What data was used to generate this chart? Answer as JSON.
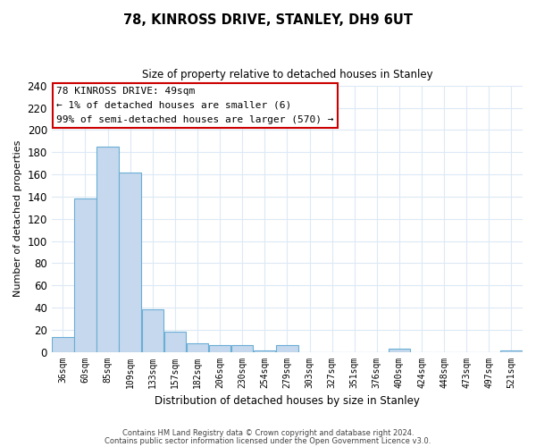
{
  "title": "78, KINROSS DRIVE, STANLEY, DH9 6UT",
  "subtitle": "Size of property relative to detached houses in Stanley",
  "bar_labels": [
    "36sqm",
    "60sqm",
    "85sqm",
    "109sqm",
    "133sqm",
    "157sqm",
    "182sqm",
    "206sqm",
    "230sqm",
    "254sqm",
    "279sqm",
    "303sqm",
    "327sqm",
    "351sqm",
    "376sqm",
    "400sqm",
    "424sqm",
    "448sqm",
    "473sqm",
    "497sqm",
    "521sqm"
  ],
  "bar_values": [
    13,
    138,
    185,
    162,
    38,
    18,
    8,
    6,
    6,
    1,
    6,
    0,
    0,
    0,
    0,
    3,
    0,
    0,
    0,
    0,
    1
  ],
  "bar_color": "#c5d8ed",
  "bar_edge_color": "#6aaed6",
  "ylabel": "Number of detached properties",
  "xlabel": "Distribution of detached houses by size in Stanley",
  "ylim": [
    0,
    240
  ],
  "yticks": [
    0,
    20,
    40,
    60,
    80,
    100,
    120,
    140,
    160,
    180,
    200,
    220,
    240
  ],
  "annotation_title": "78 KINROSS DRIVE: 49sqm",
  "annotation_line1": "← 1% of detached houses are smaller (6)",
  "annotation_line2": "99% of semi-detached houses are larger (570) →",
  "annotation_box_color": "#ffffff",
  "annotation_box_edge": "#cc0000",
  "footer_line1": "Contains HM Land Registry data © Crown copyright and database right 2024.",
  "footer_line2": "Contains public sector information licensed under the Open Government Licence v3.0.",
  "background_color": "#ffffff",
  "grid_color": "#dce9f5"
}
